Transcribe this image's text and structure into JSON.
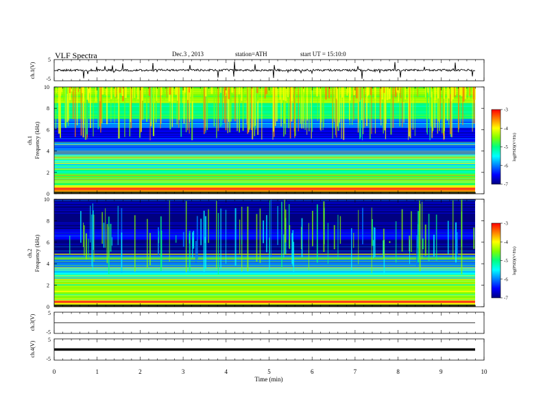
{
  "header": {
    "title": "VLF  Spectra",
    "date": "Dec.3  , 2013",
    "station": "station=ATH",
    "start": "start  UT  =    15:10:0"
  },
  "chart_data": [
    {
      "type": "line",
      "name": "ch1-waveform",
      "ylabel": "ch.1(V)",
      "ylim": [
        -5,
        5
      ],
      "yticks": [
        "5",
        "-5"
      ],
      "xlim": [
        0,
        10
      ],
      "description_level": "mean near 0 V with frequent impulsive spikes (sferics)"
    },
    {
      "type": "heatmap",
      "name": "ch1-spectrogram",
      "ylabel_top": "ch.1",
      "ylabel": "Frequency  (kHz)",
      "ylim": [
        0,
        10
      ],
      "yticks": [
        "0",
        "2",
        "4",
        "6",
        "8",
        "10"
      ],
      "xlim": [
        0,
        10
      ],
      "colorbar": {
        "label": "log(PSD)(V²/Hz)",
        "ticks": [
          "-3",
          "-4",
          "-5",
          "-6",
          "-7"
        ],
        "range": [
          -7,
          -3
        ]
      },
      "bands_khz_logpsd": [
        [
          0.0,
          0.8,
          -3.6
        ],
        [
          0.8,
          2.4,
          -4.6
        ],
        [
          2.4,
          3.6,
          -5.3
        ],
        [
          3.6,
          4.8,
          -5.8
        ],
        [
          4.8,
          6.2,
          -6.5
        ],
        [
          6.2,
          7.0,
          -5.9
        ],
        [
          7.0,
          8.5,
          -5.0
        ],
        [
          8.5,
          10.0,
          -4.3
        ]
      ]
    },
    {
      "type": "heatmap",
      "name": "ch2-spectrogram",
      "ylabel_top": "ch.2",
      "ylabel": "Frequency  (kHz)",
      "ylim": [
        0,
        10
      ],
      "yticks": [
        "0",
        "2",
        "4",
        "6",
        "8",
        "10"
      ],
      "xlim": [
        0,
        10
      ],
      "colorbar": {
        "label": "log(PSD)(V²/Hz)",
        "ticks": [
          "-3",
          "-4",
          "-5",
          "-6",
          "-7"
        ],
        "range": [
          -7,
          -3
        ]
      },
      "bands_khz_logpsd": [
        [
          0.0,
          0.8,
          -3.9
        ],
        [
          0.8,
          2.6,
          -4.5
        ],
        [
          2.6,
          3.6,
          -5.3
        ],
        [
          3.6,
          4.8,
          -5.8
        ],
        [
          4.8,
          6.2,
          -6.7
        ],
        [
          6.2,
          7.2,
          -6.2
        ],
        [
          7.2,
          10.0,
          -6.6
        ]
      ]
    },
    {
      "type": "line",
      "name": "ch3-waveform",
      "ylabel": "ch.3(V)",
      "ylim": [
        -5,
        5
      ],
      "yticks": [
        "5",
        "-5"
      ],
      "xlim": [
        0,
        10
      ],
      "level": 0
    },
    {
      "type": "line",
      "name": "ch4-waveform",
      "ylabel": "ch.4(V)",
      "ylim": [
        -5,
        5
      ],
      "yticks": [
        "5",
        "-5"
      ],
      "xlim": [
        0,
        10
      ],
      "level": 0,
      "xlabel": "Time  (min)",
      "xticks": [
        "0",
        "1",
        "2",
        "3",
        "4",
        "5",
        "6",
        "7",
        "8",
        "9",
        "10"
      ]
    }
  ],
  "colormap": [
    "#000080",
    "#0000ff",
    "#0080ff",
    "#00ffff",
    "#00ff80",
    "#80ff00",
    "#ffff00",
    "#ff8000",
    "#ff0000",
    "#ffffff"
  ]
}
